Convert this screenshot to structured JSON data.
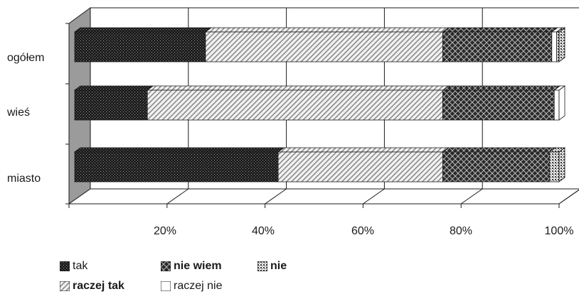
{
  "chart_data": {
    "type": "bar",
    "orientation": "horizontal",
    "stacked": "percent",
    "categories": [
      "ogółem",
      "wieś",
      "miasto"
    ],
    "series": [
      {
        "name": "tak",
        "values": [
          27,
          15,
          42
        ]
      },
      {
        "name": "raczej tak",
        "values": [
          49,
          61,
          34
        ]
      },
      {
        "name": "nie wiem",
        "values": [
          22.5,
          23,
          22
        ]
      },
      {
        "name": "raczej nie",
        "values": [
          1,
          1,
          0
        ]
      },
      {
        "name": "nie",
        "values": [
          0.5,
          0,
          2
        ]
      }
    ],
    "x_ticks": [
      "20%",
      "40%",
      "60%",
      "80%",
      "100%"
    ],
    "xlim": [
      0,
      100
    ],
    "grid": true,
    "legend_position": "bottom",
    "style": "3d"
  },
  "legend": {
    "tak": "tak",
    "nie_wiem": "nie wiem",
    "nie": "nie",
    "raczej_tak": "raczej tak",
    "raczej_nie": "raczej nie"
  }
}
